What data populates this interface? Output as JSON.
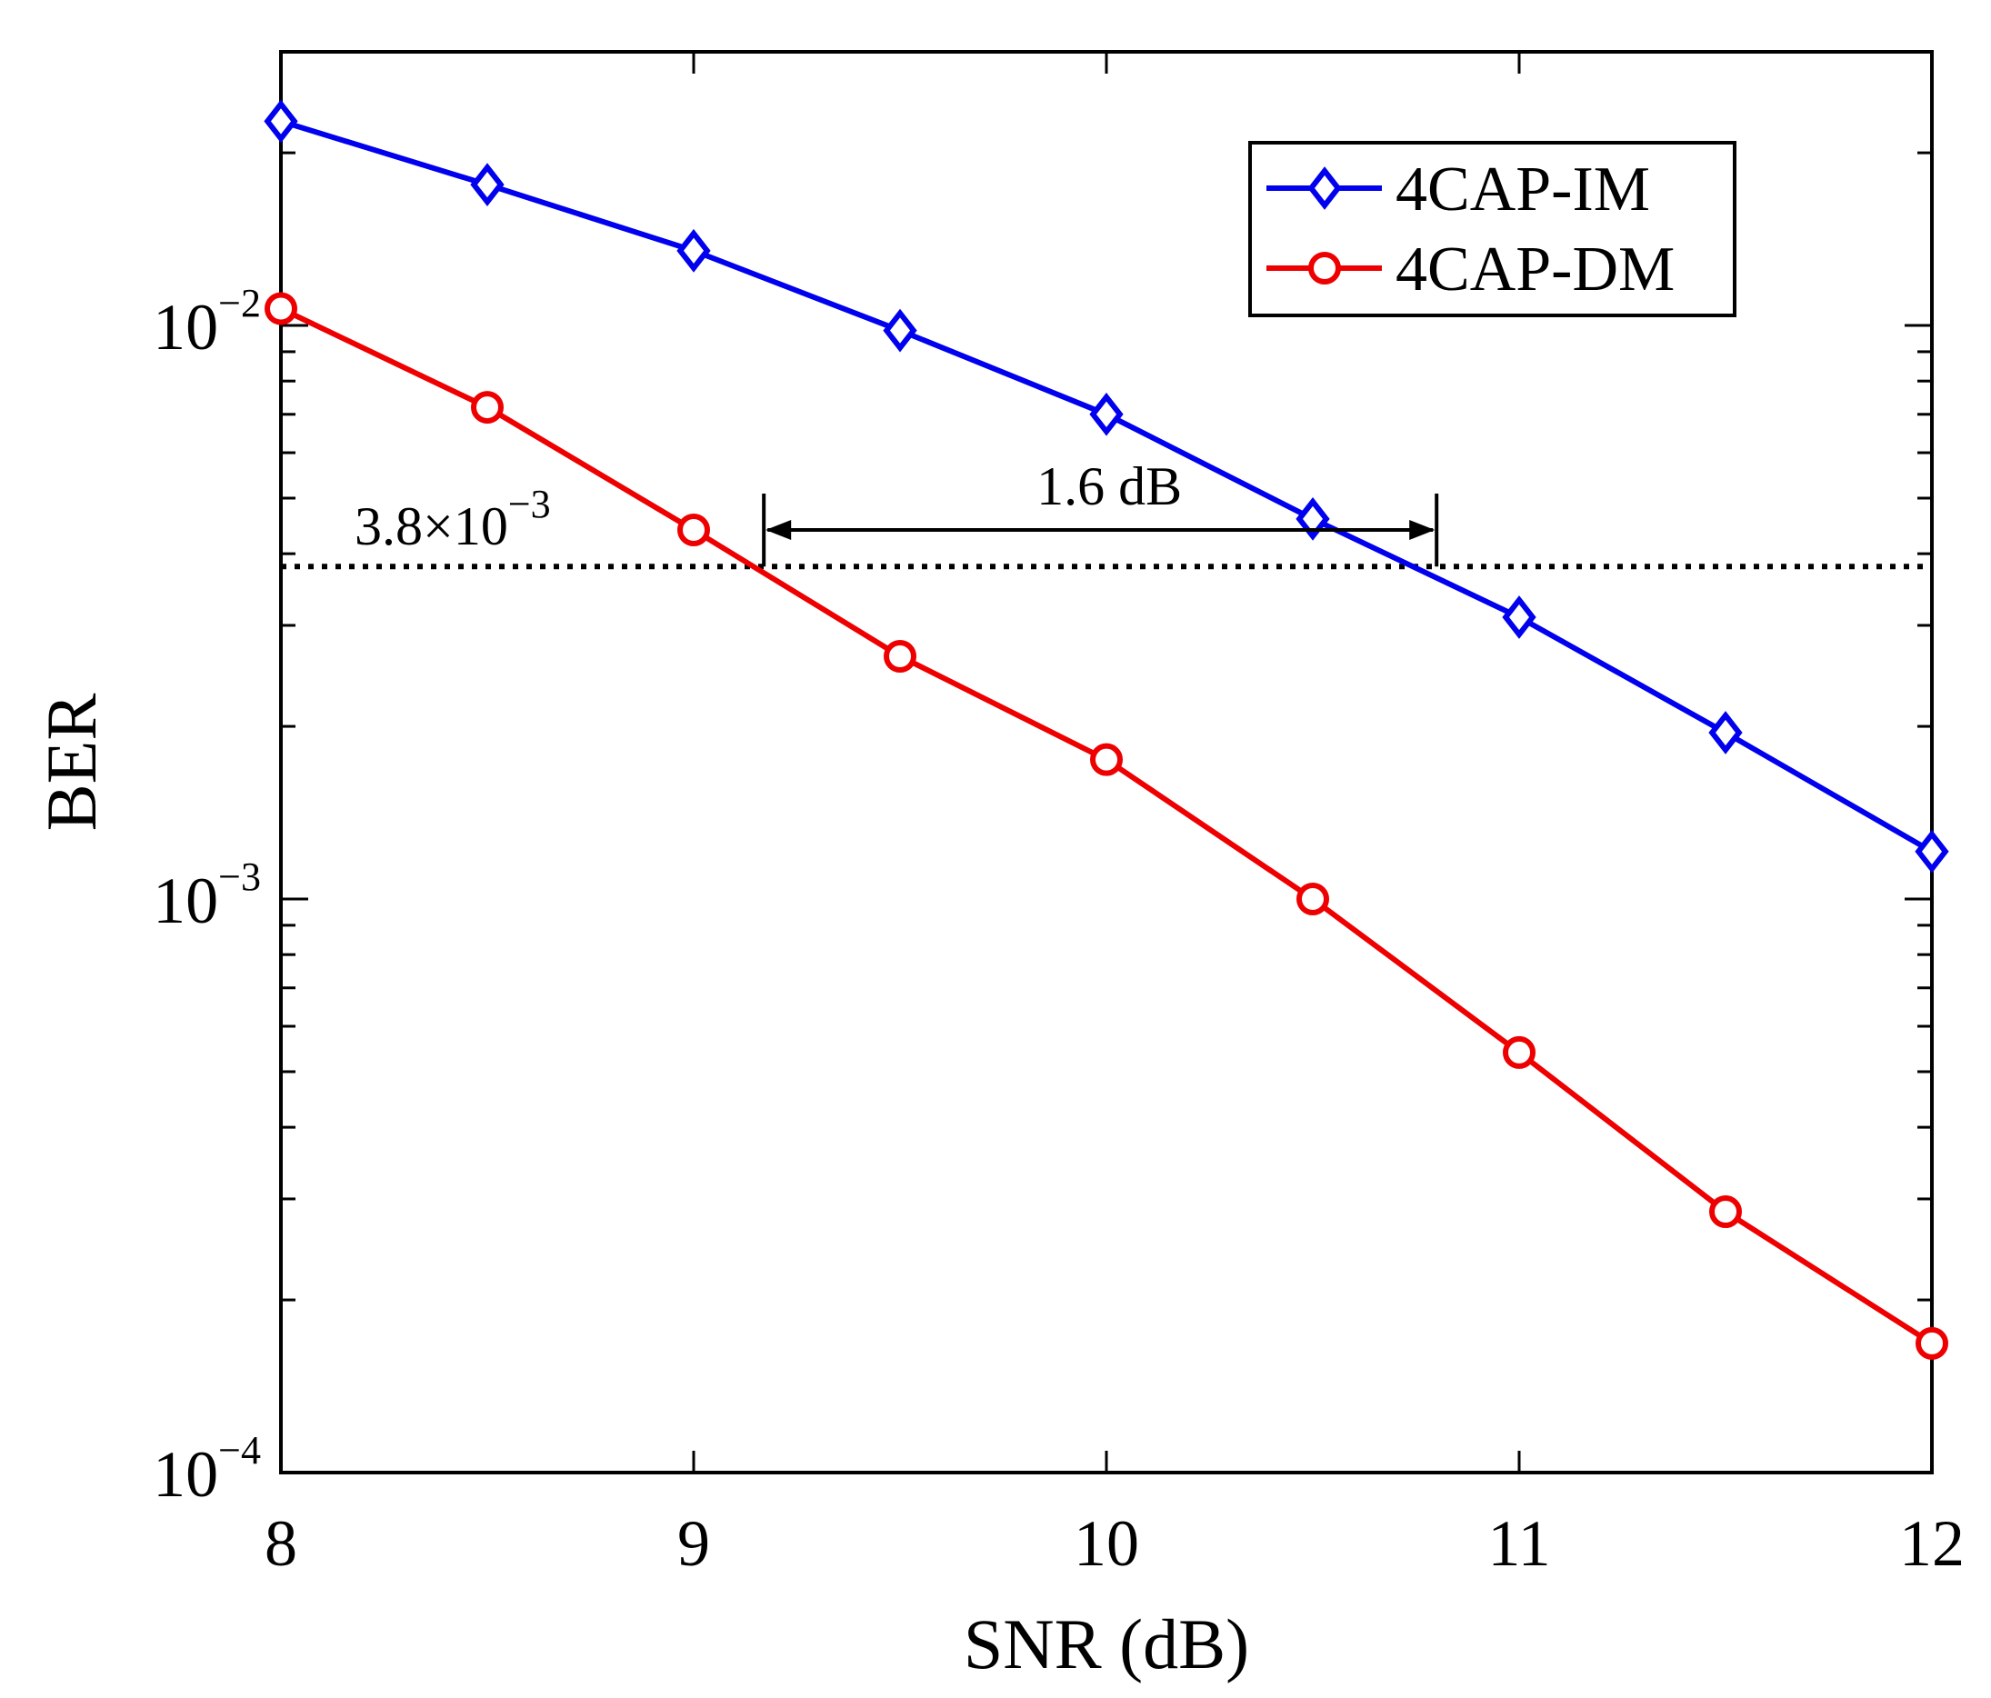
{
  "chart_data": {
    "type": "line",
    "xlabel": "SNR (dB)",
    "ylabel": "BER",
    "xlim": [
      8,
      12
    ],
    "ylim": [
      0.0001,
      0.03
    ],
    "yscale": "log",
    "x_ticks": [
      "8",
      "9",
      "10",
      "11",
      "12"
    ],
    "y_ticks": [
      {
        "base": "10",
        "exp": "−2",
        "value": 0.01
      },
      {
        "base": "10",
        "exp": "−3",
        "value": 0.001
      },
      {
        "base": "10",
        "exp": "−4",
        "value": 0.0001
      }
    ],
    "grid": false,
    "legend_position": "top-right",
    "x": [
      8,
      8.5,
      9,
      9.5,
      10,
      10.5,
      11,
      11.5,
      12
    ],
    "series": [
      {
        "name": "4CAP-IM",
        "color": "#0000ee",
        "marker": "diamond",
        "values": [
          0.0227,
          0.0176,
          0.0135,
          0.0098,
          0.007,
          0.0046,
          0.0031,
          0.00195,
          0.00121
        ]
      },
      {
        "name": "4CAP-DM",
        "color": "#ee0000",
        "marker": "circle",
        "values": [
          0.0107,
          0.0072,
          0.0044,
          0.00265,
          0.00175,
          0.001,
          0.00054,
          0.000285,
          0.000168
        ]
      }
    ],
    "threshold": {
      "value": 0.0038,
      "label_base": "3.8×10",
      "label_exp": "−3",
      "style": "dotted"
    },
    "gap_annotation": {
      "label": "1.6 dB",
      "x_start": 9.17,
      "x_end": 10.8,
      "y": 0.0044
    }
  }
}
